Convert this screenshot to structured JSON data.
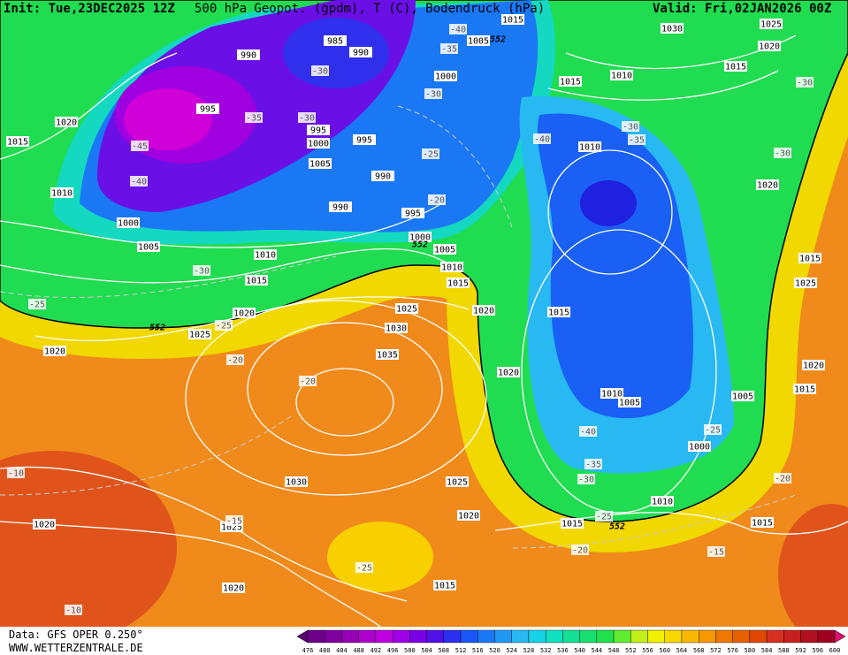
{
  "header": {
    "init": "Init: Tue,23DEC2025 12Z",
    "title": "500 hPa Geopot. (gpdm), T (C), Bodendruck (hPa)",
    "valid": "Valid: Fri,02JAN2026 00Z"
  },
  "footer": {
    "data": "Data: GFS OPER 0.250°",
    "site": "WWW.WETTERZENTRALE.DE"
  },
  "colorbar": {
    "levels": [
      476,
      480,
      484,
      488,
      492,
      496,
      500,
      504,
      508,
      512,
      516,
      520,
      524,
      528,
      532,
      536,
      540,
      544,
      548,
      552,
      556,
      560,
      564,
      568,
      572,
      576,
      580,
      584,
      588,
      592,
      596,
      600
    ],
    "colors": [
      "#5a0070",
      "#6d0087",
      "#80009e",
      "#9600b4",
      "#ad00cc",
      "#c000e0",
      "#a000e6",
      "#7a00e6",
      "#5010e8",
      "#2a30f0",
      "#1a55f5",
      "#1a78f5",
      "#2298f5",
      "#28b8f2",
      "#18d2e8",
      "#10e0c0",
      "#14e096",
      "#18e070",
      "#20e04c",
      "#60ec30",
      "#c0f018",
      "#f0f000",
      "#f8d800",
      "#f8b800",
      "#f89800",
      "#f07800",
      "#e86000",
      "#e04800",
      "#d83020",
      "#c82020",
      "#b01020",
      "#a00020",
      "#e01070"
    ]
  },
  "map_labels": {
    "pressure": [
      "1015",
      "1020",
      "1010",
      "1000",
      "1005",
      "1010",
      "1015",
      "1020",
      "1025",
      "1020",
      "1025",
      "1030",
      "1035",
      "1030",
      "1025",
      "1020",
      "1025",
      "1020",
      "1020",
      "1015",
      "1015",
      "1010",
      "1000",
      "1005",
      "1005",
      "1010",
      "1015",
      "1020",
      "1020",
      "1015",
      "1010",
      "1005",
      "1000",
      "995",
      "990",
      "990",
      "1005",
      "1000",
      "995",
      "995",
      "995",
      "990",
      "985",
      "990",
      "1000",
      "1005",
      "1015",
      "1015",
      "1010",
      "1010",
      "1030",
      "1025",
      "1020",
      "1015",
      "1020",
      "1015",
      "1025",
      "1020",
      "1015",
      "1015"
    ],
    "temperature": [
      "-45",
      "-40",
      "-35",
      "-30",
      "-30",
      "-40",
      "-35",
      "-30",
      "-25",
      "-20",
      "-40",
      "-30",
      "-35",
      "-30",
      "-30",
      "-25",
      "-30",
      "-25",
      "-20",
      "-20",
      "-10",
      "-15",
      "-25",
      "-10",
      "-20",
      "-15",
      "-25",
      "-30",
      "-35",
      "-40",
      "-25",
      "-20"
    ],
    "geopotential": [
      "552",
      "552",
      "552",
      "552"
    ]
  }
}
